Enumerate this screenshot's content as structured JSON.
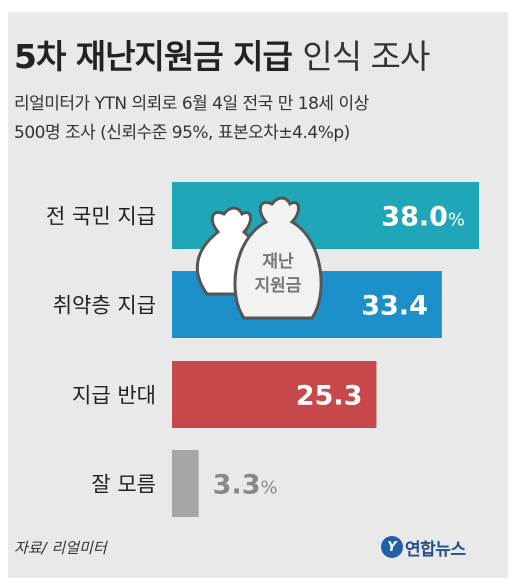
{
  "header": {
    "title_bold": "5차 재난지원금 지급",
    "title_light": "인식 조사",
    "subtitle_line1": "리얼미터가 YTN 의뢰로 6월 4일 전국 만 18세 이상",
    "subtitle_line2": "500명 조사 (신뢰수준 95%, 표본오차±4.4%p)"
  },
  "illustration": {
    "bag_text_line1": "재난",
    "bag_text_line2": "지원금",
    "icon": "money-bag-icon"
  },
  "chart_data": {
    "type": "bar",
    "orientation": "horizontal",
    "categories": [
      "전 국민 지급",
      "취약층 지급",
      "지급 반대",
      "잘 모름"
    ],
    "values": [
      38.0,
      33.4,
      25.3,
      3.3
    ],
    "value_labels": [
      "38.0",
      "33.4",
      "25.3",
      "3.3"
    ],
    "unit": "%",
    "unit_shown_on": [
      0,
      3
    ],
    "colors": [
      "#1fa7b8",
      "#1c8fc9",
      "#c7484a",
      "#a6a6a6"
    ],
    "value_label_colors": [
      "#ffffff",
      "#ffffff",
      "#ffffff",
      "#888888"
    ],
    "xlim": [
      0,
      40
    ],
    "title": "5차 재난지원금 지급 인식 조사",
    "grid": false,
    "legend": "none"
  },
  "footer": {
    "source": "자료/ 리얼미터",
    "logo_text": "연합뉴스",
    "logo_mark": "Y"
  }
}
